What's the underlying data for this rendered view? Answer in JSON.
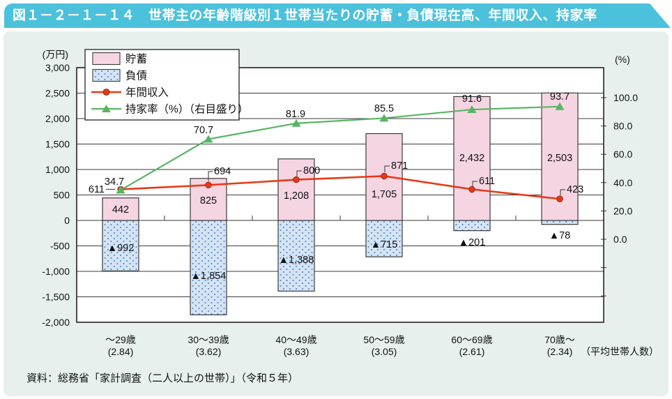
{
  "header": {
    "title": "図１－２－１－１４　世帯主の年齢階級別１世帯当たりの貯蓄・負債現在高、年間収入、持家率"
  },
  "footer": {
    "source": "資料：総務省「家計調査（二人以上の世帯）」（令和５年）"
  },
  "colors": {
    "banner": "#4cc1db",
    "panel_bg": "#e7f0ed",
    "plot_bg": "#ffffff",
    "grid": "#3a3a3a",
    "frame": "#222222",
    "savings_fill": "#f6d5e3",
    "debt_fill": "#d5e4f5",
    "debt_dot": "#5b8fd0",
    "income_line": "#e63a17",
    "income_marker_edge": "#8b1a00",
    "ownership_line": "#57b561",
    "leader": "#555555",
    "bar_border": "#3a3a3a"
  },
  "chart_data": {
    "type": "bar",
    "title": "世帯主の年齢階級別１世帯当たりの貯蓄・負債現在高、年間収入、持家率",
    "left_axis": {
      "label": "(万円)",
      "min": -2000,
      "max": 3000,
      "step": 500,
      "tick_labels": [
        "3,000",
        "2,500",
        "2,000",
        "1,500",
        "1,000",
        "500",
        "0",
        "-500",
        "-1,000",
        "-1,500",
        "-2,000"
      ]
    },
    "right_axis": {
      "label": "(%)",
      "min": 0,
      "max": 100,
      "step": 20,
      "tick_labels": [
        "100.0",
        "80.0",
        "60.0",
        "40.0",
        "20.0",
        "0.0"
      ]
    },
    "categories": [
      {
        "line1": "～29歳",
        "line2": "(2.84)"
      },
      {
        "line1": "30～39歳",
        "line2": "(3.62)"
      },
      {
        "line1": "40～49歳",
        "line2": "(3.63)"
      },
      {
        "line1": "50～59歳",
        "line2": "(3.05)"
      },
      {
        "line1": "60～69歳",
        "line2": "(2.61)"
      },
      {
        "line1": "70歳～",
        "line2": "(2.34)"
      }
    ],
    "categories_note": "（平均世帯人数）",
    "series": [
      {
        "name": "貯蓄",
        "type": "bar",
        "axis": "left",
        "values": [
          442,
          825,
          1208,
          1705,
          2432,
          2503
        ],
        "labels": [
          "442",
          "825",
          "1,208",
          "1,705",
          "2,432",
          "2,503"
        ]
      },
      {
        "name": "負債",
        "type": "bar",
        "axis": "left",
        "values": [
          -992,
          -1854,
          -1388,
          -715,
          -201,
          -78
        ],
        "labels": [
          "▲992",
          "▲1,854",
          "▲1,388",
          "▲715",
          "▲201",
          "▲78"
        ]
      },
      {
        "name": "年間収入",
        "type": "line",
        "axis": "left",
        "values": [
          611,
          694,
          800,
          871,
          611,
          423
        ],
        "labels": [
          "611",
          "694",
          "800",
          "871",
          "611",
          "423"
        ]
      },
      {
        "name": "持家率（%）（右目盛り）",
        "type": "line",
        "axis": "right",
        "values": [
          34.7,
          70.7,
          81.9,
          85.5,
          91.6,
          93.7
        ],
        "labels": [
          "34.7",
          "70.7",
          "81.9",
          "85.5",
          "91.6",
          "93.7"
        ]
      }
    ],
    "legend": {
      "position": "top-left",
      "entries": [
        "貯蓄",
        "負債",
        "年間収入",
        "持家率（%）（右目盛り）"
      ]
    },
    "grid": true
  }
}
